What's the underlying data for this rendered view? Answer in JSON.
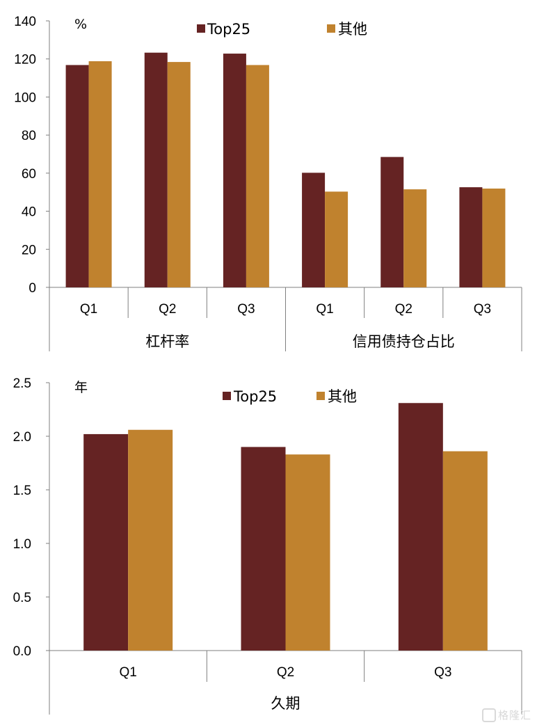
{
  "colors": {
    "top25": "#652323",
    "other": "#C0822E",
    "axis": "#7f7f7f"
  },
  "chart_data": [
    {
      "type": "bar",
      "unit_label": "%",
      "ylim": [
        0,
        140
      ],
      "yticks": [
        "0",
        "20",
        "40",
        "60",
        "80",
        "100",
        "120",
        "140"
      ],
      "ytick_values": [
        0,
        20,
        40,
        60,
        80,
        100,
        120,
        140
      ],
      "legend": [
        "Top25",
        "其他"
      ],
      "groups": [
        {
          "label": "杠杆率",
          "categories": [
            "Q1",
            "Q2",
            "Q3"
          ]
        },
        {
          "label": "信用债持仓占比",
          "categories": [
            "Q1",
            "Q2",
            "Q3"
          ]
        }
      ],
      "series": [
        {
          "name": "Top25",
          "values": [
            116.8,
            123.3,
            122.8,
            60.2,
            68.5,
            52.6
          ]
        },
        {
          "name": "其他",
          "values": [
            118.8,
            118.4,
            116.8,
            50.3,
            51.5,
            51.9
          ]
        }
      ]
    },
    {
      "type": "bar",
      "unit_label": "年",
      "ylim": [
        0,
        2.5
      ],
      "yticks": [
        "0.0",
        "0.5",
        "1.0",
        "1.5",
        "2.0",
        "2.5"
      ],
      "ytick_values": [
        0,
        0.5,
        1.0,
        1.5,
        2.0,
        2.5
      ],
      "legend": [
        "Top25",
        "其他"
      ],
      "groups": [
        {
          "label": "久期",
          "categories": [
            "Q1",
            "Q2",
            "Q3"
          ]
        }
      ],
      "series": [
        {
          "name": "Top25",
          "values": [
            2.02,
            1.9,
            2.31
          ]
        },
        {
          "name": "其他",
          "values": [
            2.06,
            1.83,
            1.86
          ]
        }
      ]
    }
  ],
  "watermark": "格隆汇"
}
